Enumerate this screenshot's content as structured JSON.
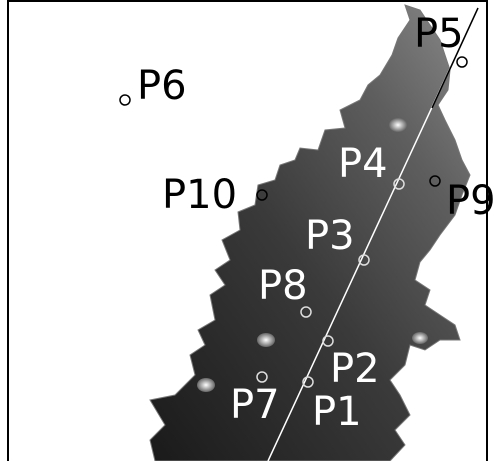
{
  "points": [
    {
      "label": "P1"
    },
    {
      "label": "P2"
    },
    {
      "label": "P3"
    },
    {
      "label": "P4"
    },
    {
      "label": "P5"
    },
    {
      "label": "P6"
    },
    {
      "label": "P7"
    },
    {
      "label": "P8"
    },
    {
      "label": "P9"
    },
    {
      "label": "P10"
    }
  ]
}
